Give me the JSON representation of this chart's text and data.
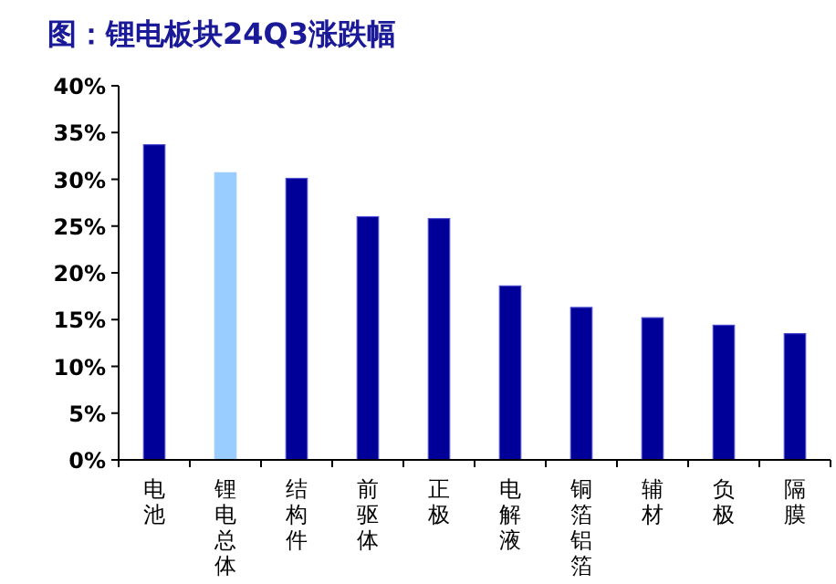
{
  "chart_data": {
    "type": "bar",
    "title": "图：锂电板块24Q3涨跌幅",
    "categories": [
      "电池",
      "锂电总体",
      "结构件",
      "前驱体",
      "正极",
      "电解液",
      "铜箔铝箔",
      "辅材",
      "负极",
      "隔膜"
    ],
    "values": [
      33.7,
      30.7,
      30.1,
      26.0,
      25.8,
      18.6,
      16.3,
      15.2,
      14.4,
      13.5
    ],
    "colors": [
      "#000099",
      "#99ccff",
      "#000099",
      "#000099",
      "#000099",
      "#000099",
      "#000099",
      "#000099",
      "#000099",
      "#000099"
    ],
    "ylim": [
      0,
      40
    ],
    "yticks": [
      {
        "value": 0,
        "label": "0%"
      },
      {
        "value": 5,
        "label": "5%"
      },
      {
        "value": 10,
        "label": "10%"
      },
      {
        "value": 15,
        "label": "15%"
      },
      {
        "value": 20,
        "label": "20%"
      },
      {
        "value": 25,
        "label": "25%"
      },
      {
        "value": 30,
        "label": "30%"
      },
      {
        "value": 35,
        "label": "35%"
      },
      {
        "value": 40,
        "label": "40%"
      }
    ],
    "grid": false
  }
}
